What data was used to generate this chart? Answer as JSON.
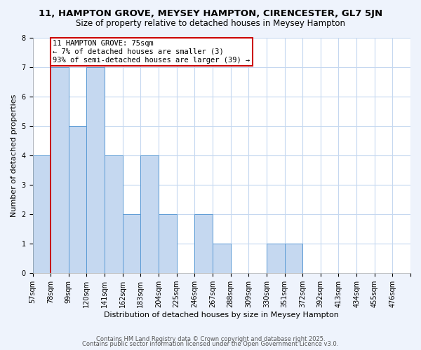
{
  "title1": "11, HAMPTON GROVE, MEYSEY HAMPTON, CIRENCESTER, GL7 5JN",
  "title2": "Size of property relative to detached houses in Meysey Hampton",
  "xlabel": "Distribution of detached houses by size in Meysey Hampton",
  "ylabel": "Number of detached properties",
  "bin_labels": [
    "57sqm",
    "78sqm",
    "99sqm",
    "120sqm",
    "141sqm",
    "162sqm",
    "183sqm",
    "204sqm",
    "225sqm",
    "246sqm",
    "267sqm",
    "288sqm",
    "309sqm",
    "330sqm",
    "351sqm",
    "372sqm",
    "392sqm",
    "413sqm",
    "434sqm",
    "455sqm",
    "476sqm"
  ],
  "bar_heights": [
    4,
    7,
    5,
    7,
    4,
    2,
    4,
    2,
    0,
    2,
    1,
    0,
    0,
    1,
    1,
    0,
    0,
    0,
    0,
    0,
    0
  ],
  "bar_color": "#c5d8f0",
  "bar_edge_color": "#5b9bd5",
  "subject_bin_index": 1,
  "annotation_title": "11 HAMPTON GROVE: 75sqm",
  "annotation_line1": "← 7% of detached houses are smaller (3)",
  "annotation_line2": "93% of semi-detached houses are larger (39) →",
  "annotation_box_color": "#ffffff",
  "annotation_box_edge_color": "#cc0000",
  "subject_line_color": "#cc0000",
  "ylim": [
    0,
    8
  ],
  "yticks": [
    0,
    1,
    2,
    3,
    4,
    5,
    6,
    7,
    8
  ],
  "footer1": "Contains HM Land Registry data © Crown copyright and database right 2025.",
  "footer2": "Contains public sector information licensed under the Open Government Licence v3.0.",
  "bg_color": "#eef3fc",
  "plot_bg_color": "#ffffff",
  "grid_color": "#c5d8f0",
  "title_fontsize": 9.5,
  "subtitle_fontsize": 8.5,
  "axis_label_fontsize": 8,
  "tick_fontsize": 7,
  "annotation_fontsize": 7.5,
  "footer_fontsize": 6
}
